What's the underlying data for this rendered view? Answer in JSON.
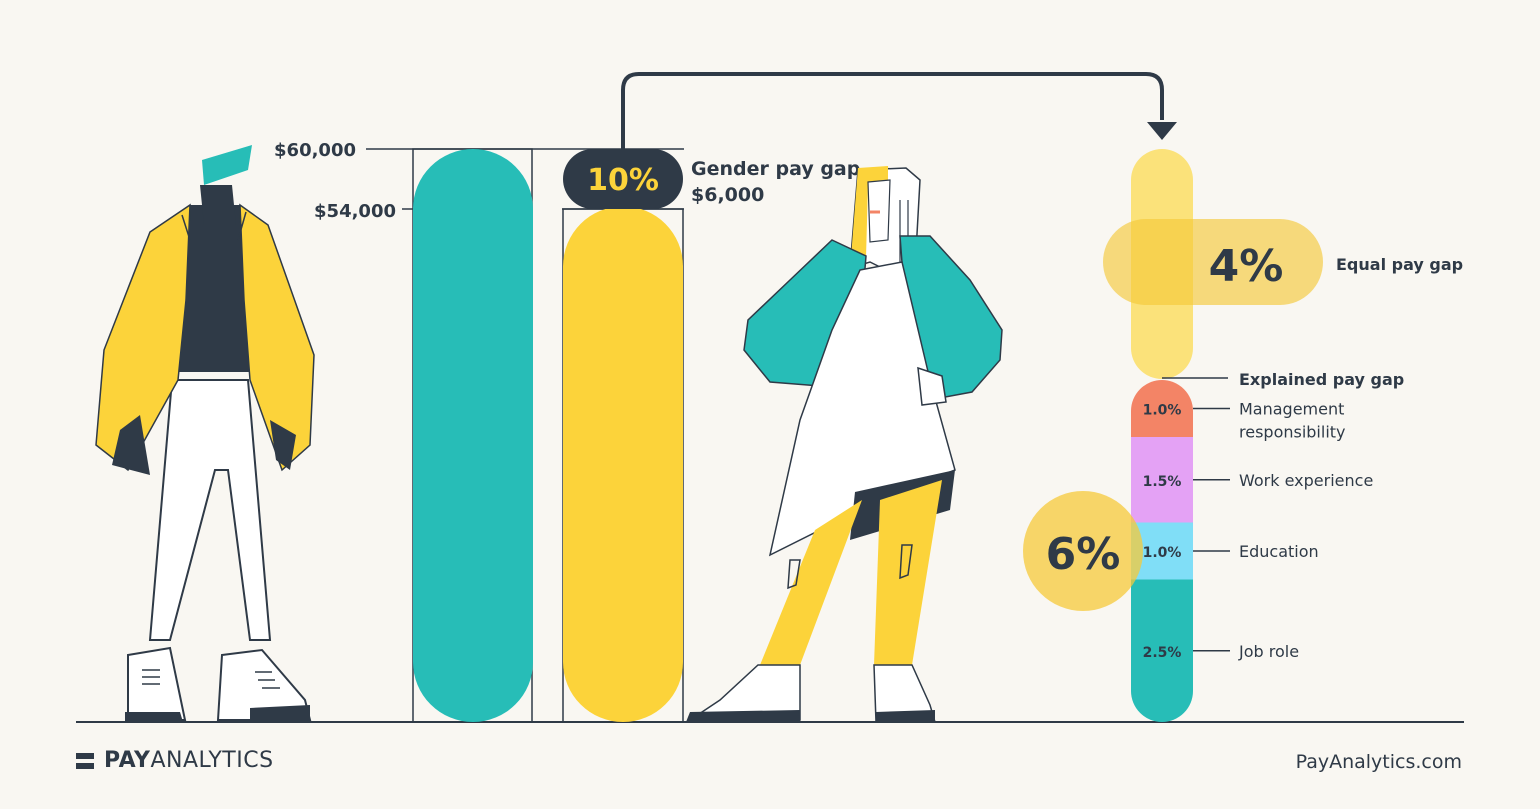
{
  "chart_data": {
    "type": "bar",
    "y_axis_labels": [
      "$60,000",
      "$54,000"
    ],
    "categories": [
      "Men",
      "Women"
    ],
    "values": [
      60000,
      54000
    ],
    "gap": {
      "percent": "10%",
      "title": "Gender pay gap",
      "amount": "$6,000"
    },
    "breakdown": {
      "equal": {
        "percent": "4%",
        "label": "Equal pay gap"
      },
      "explained": {
        "percent": "6%",
        "label": "Explained pay gap",
        "components": [
          {
            "value": 1.0,
            "value_label": "1.0%",
            "label": "Management responsibility",
            "color": "#f38466"
          },
          {
            "value": 1.5,
            "value_label": "1.5%",
            "label": "Work experience",
            "color": "#e4a2f5"
          },
          {
            "value": 1.0,
            "value_label": "1.0%",
            "label": "Education",
            "color": "#80def7"
          },
          {
            "value": 2.5,
            "value_label": "2.5%",
            "label": "Job role",
            "color": "#27bdb7"
          }
        ]
      }
    }
  },
  "colors": {
    "teal": "#27bdb7",
    "yellow": "#fcd33a",
    "pale_yellow": "#fbe27a",
    "dark": "#2f3a47",
    "background": "#f9f7f2"
  },
  "footer": {
    "logo_bold": "PAY",
    "logo_light": "ANALYTICS",
    "website": "PayAnalytics.com"
  }
}
